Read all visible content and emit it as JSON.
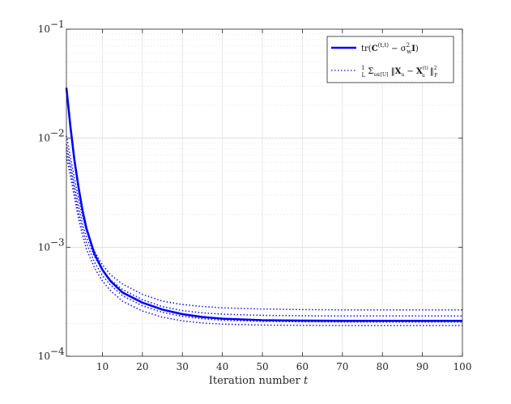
{
  "chart_data": {
    "type": "line",
    "title": "",
    "xlabel": "Iteration number",
    "xlabel_var": "t",
    "ylabel": "",
    "x_range": [
      1,
      100
    ],
    "y_range": [
      0.0001,
      0.1
    ],
    "y_scale": "log",
    "grid": true,
    "minor_grid": true,
    "legend_position": "top-right",
    "x_ticks": [
      10,
      20,
      30,
      40,
      50,
      60,
      70,
      80,
      90,
      100
    ],
    "y_ticks": [
      {
        "value": 0.0001,
        "base": "10",
        "exp": "−4"
      },
      {
        "value": 0.001,
        "base": "10",
        "exp": "−3"
      },
      {
        "value": 0.01,
        "base": "10",
        "exp": "−2"
      },
      {
        "value": 0.1,
        "base": "10",
        "exp": "−1"
      }
    ],
    "series": [
      {
        "name": "tr(C^(t,t) − σ_w² I)",
        "style": "solid",
        "color": "#0000ff",
        "x": [
          1,
          2,
          3,
          4,
          5,
          6,
          8,
          10,
          12,
          15,
          20,
          25,
          30,
          35,
          40,
          50,
          60,
          70,
          80,
          90,
          100
        ],
        "y": [
          0.029,
          0.0128,
          0.0063,
          0.0036,
          0.0022,
          0.00149,
          0.00087,
          0.00062,
          0.00049,
          0.000385,
          0.00031,
          0.000268,
          0.000243,
          0.000229,
          0.000221,
          0.000214,
          0.000212,
          0.000211,
          0.000211,
          0.000211,
          0.000211
        ]
      },
      {
        "name": "(1/L) Σ_{u∈[U]} ‖X_u − X_u^(t)‖_F²",
        "style": "dotted",
        "color": "#0000ff",
        "x": [
          1,
          2,
          3,
          4,
          5,
          6,
          8,
          10,
          12,
          15,
          20,
          25,
          30,
          35,
          40,
          50,
          60,
          70,
          80,
          90,
          100
        ],
        "y": [
          0.0105,
          0.0067,
          0.0043,
          0.0028,
          0.00195,
          0.00142,
          0.00092,
          0.00069,
          0.00056,
          0.00046,
          0.00037,
          0.00032,
          0.000298,
          0.000286,
          0.000278,
          0.000271,
          0.000268,
          0.000266,
          0.000266,
          0.000266,
          0.000266
        ]
      },
      {
        "name": "",
        "style": "dotted",
        "color": "#0000ff",
        "x": [
          1,
          2,
          3,
          4,
          5,
          6,
          8,
          10,
          12,
          15,
          20,
          25,
          30,
          35,
          40,
          50,
          60,
          70,
          80,
          90,
          100
        ],
        "y": [
          0.0088,
          0.0058,
          0.0037,
          0.0024,
          0.00168,
          0.00124,
          0.00082,
          0.00062,
          0.0005,
          0.00041,
          0.00033,
          0.000285,
          0.000262,
          0.00025,
          0.000243,
          0.000237,
          0.000235,
          0.000234,
          0.000234,
          0.000234,
          0.000234
        ]
      },
      {
        "name": "",
        "style": "dotted",
        "color": "#0000ff",
        "x": [
          1,
          2,
          3,
          4,
          5,
          6,
          8,
          10,
          12,
          15,
          20,
          25,
          30,
          35,
          40,
          50,
          60,
          70,
          80,
          90,
          100
        ],
        "y": [
          0.0078,
          0.0052,
          0.0033,
          0.0021,
          0.00149,
          0.0011,
          0.00073,
          0.00055,
          0.00045,
          0.00036,
          0.00029,
          0.000253,
          0.000232,
          0.000221,
          0.000214,
          0.000209,
          0.000207,
          0.000206,
          0.000206,
          0.000206,
          0.000206
        ]
      },
      {
        "name": "",
        "style": "dotted",
        "color": "#0000ff",
        "x": [
          1,
          2,
          3,
          4,
          5,
          6,
          8,
          10,
          12,
          15,
          20,
          25,
          30,
          35,
          40,
          50,
          60,
          70,
          80,
          90,
          100
        ],
        "y": [
          0.0068,
          0.0045,
          0.0029,
          0.00185,
          0.0013,
          0.00096,
          0.00065,
          0.00049,
          0.0004,
          0.00032,
          0.00026,
          0.000228,
          0.000211,
          0.000202,
          0.000197,
          0.000193,
          0.000192,
          0.000191,
          0.000191,
          0.000191,
          0.000191
        ]
      }
    ]
  }
}
